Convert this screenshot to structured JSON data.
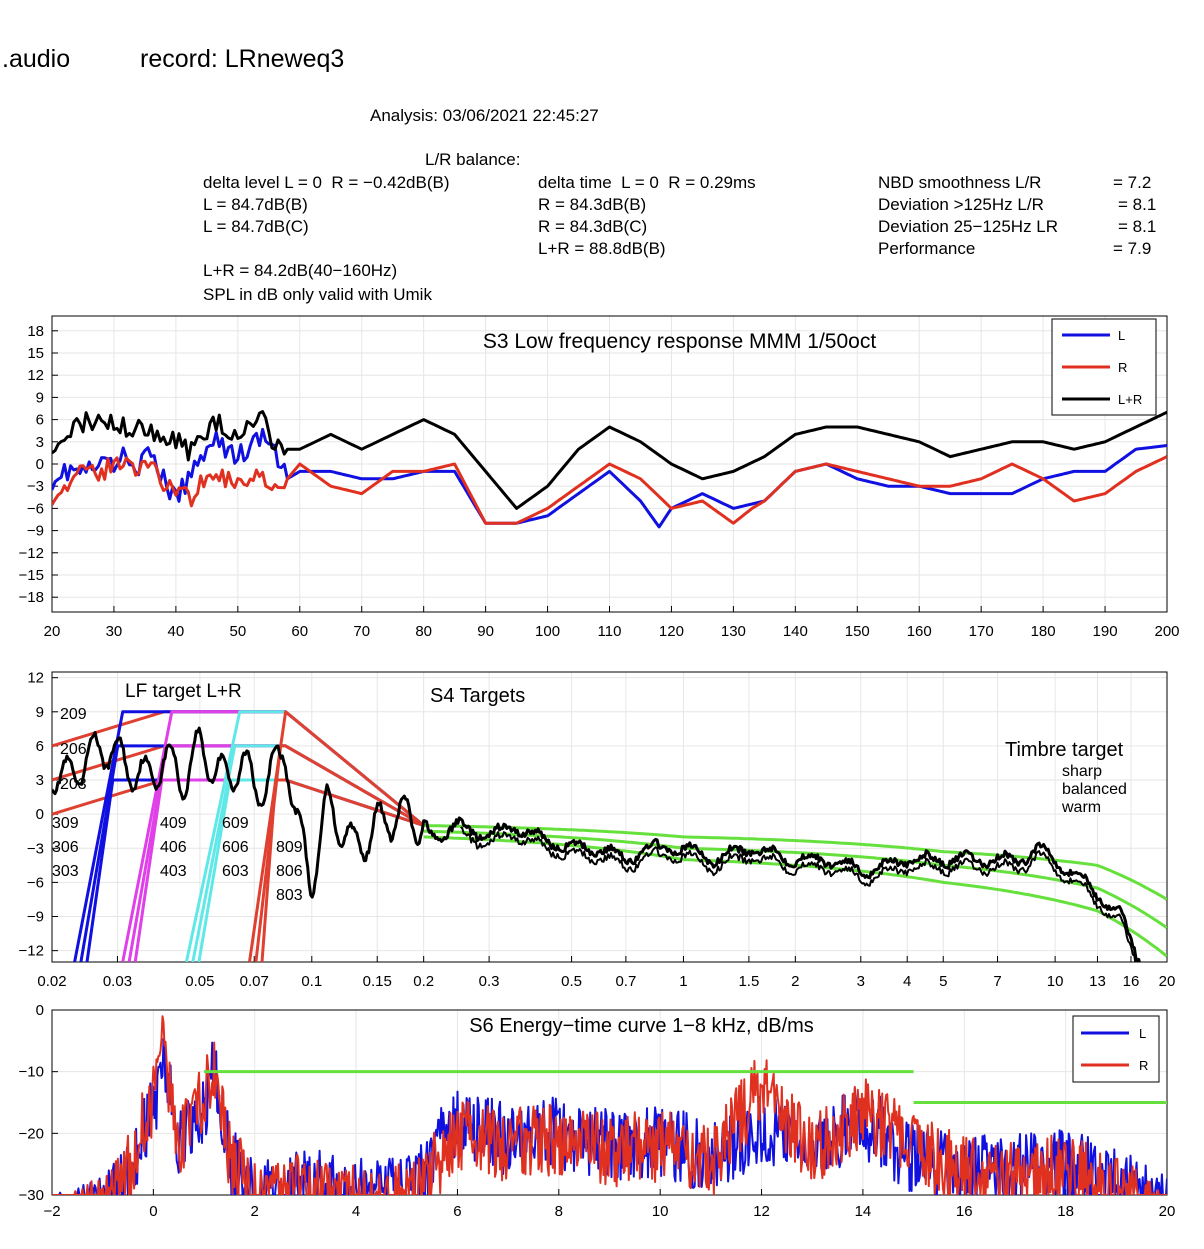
{
  "header": {
    "app": ".audio",
    "record": "record: LRneweq3",
    "analysis": "Analysis: 03/06/2021 22:45:27",
    "balance_title": "L/R balance:",
    "col1": [
      "delta level L = 0  R = −0.42dB(B)",
      "L = 84.7dB(B)",
      "L = 84.7dB(C)"
    ],
    "col2": [
      "delta time  L = 0  R = 0.29ms",
      "R = 84.3dB(B)",
      "R = 84.3dB(C)",
      "L+R = 88.8dB(B)"
    ],
    "col3_labels": [
      "NBD smoothness L/R",
      "Deviation >125Hz L/R",
      "Deviation 25−125Hz LR",
      "Performance"
    ],
    "col3_values": [
      "= 7.2",
      "= 8.1",
      "= 8.1",
      "= 7.9"
    ],
    "lr_level": "L+R = 84.2dB(40−160Hz)",
    "spl_note": "SPL in dB only valid with Umik"
  },
  "colors": {
    "L": "#1010e0",
    "R": "#e03020",
    "LR": "#000000",
    "target_green": "#66e03c",
    "magenta": "#e040e8",
    "cyan": "#60e8e8",
    "red_target": "#e04030"
  },
  "chart_data": [
    {
      "type": "line",
      "title": "S3  Low frequency response MMM 1/50oct",
      "xlabel": "",
      "ylabel": "",
      "xlim": [
        20,
        200
      ],
      "ylim": [
        -20,
        20
      ],
      "xticks": [
        20,
        30,
        40,
        50,
        60,
        70,
        80,
        90,
        100,
        110,
        120,
        130,
        140,
        150,
        160,
        170,
        180,
        190,
        200
      ],
      "yticks": [
        18,
        15,
        12,
        9,
        6,
        3,
        0,
        -3,
        -6,
        -9,
        -12,
        -15,
        -18
      ],
      "legend": [
        "L",
        "R",
        "L+R"
      ],
      "legend_position": "top-right",
      "grid": true,
      "series": [
        {
          "name": "L",
          "x": [
            20,
            22,
            24,
            26,
            28,
            30,
            32,
            34,
            36,
            38,
            40,
            42,
            44,
            46,
            48,
            50,
            52,
            54,
            56,
            58,
            60,
            65,
            70,
            75,
            80,
            85,
            90,
            95,
            100,
            105,
            110,
            115,
            118,
            120,
            125,
            130,
            135,
            140,
            145,
            150,
            155,
            160,
            165,
            170,
            175,
            180,
            185,
            190,
            195,
            200
          ],
          "y": [
            -2,
            -1,
            -1,
            -1,
            0,
            0,
            1,
            0,
            1,
            -2,
            -5,
            -2,
            1,
            4,
            2,
            1,
            2,
            4,
            1,
            -2,
            -1,
            -1,
            -2,
            -2,
            -1,
            -1,
            -8,
            -8,
            -7,
            -4,
            -1,
            -5,
            -8.5,
            -6,
            -4,
            -6,
            -5,
            -1,
            0,
            -2,
            -3,
            -3,
            -4,
            -4,
            -4,
            -2,
            -1,
            -1,
            2,
            2.5
          ]
        },
        {
          "name": "R",
          "x": [
            20,
            22,
            24,
            26,
            28,
            30,
            32,
            34,
            36,
            38,
            40,
            42,
            44,
            46,
            48,
            50,
            52,
            54,
            56,
            58,
            60,
            65,
            70,
            75,
            80,
            85,
            90,
            95,
            100,
            105,
            110,
            115,
            120,
            125,
            130,
            133,
            135,
            140,
            145,
            150,
            155,
            160,
            165,
            170,
            175,
            180,
            185,
            190,
            195,
            200
          ],
          "y": [
            -4,
            -3,
            -2,
            -1,
            -1,
            0,
            0,
            -1,
            1,
            -3,
            -3,
            -5,
            -2,
            -3,
            -2,
            -3,
            -1,
            -2,
            -2,
            -2,
            0,
            -3,
            -4,
            -1,
            -1,
            0,
            -8,
            -8,
            -6,
            -3,
            0,
            -2,
            -6,
            -5,
            -8,
            -6,
            -5,
            -1,
            0,
            -1,
            -2,
            -3,
            -3,
            -2,
            0,
            -2,
            -5,
            -4,
            -1,
            1
          ]
        },
        {
          "name": "L+R",
          "x": [
            20,
            22,
            24,
            26,
            28,
            30,
            32,
            34,
            36,
            38,
            40,
            42,
            44,
            46,
            48,
            50,
            52,
            54,
            56,
            58,
            60,
            65,
            70,
            75,
            80,
            85,
            90,
            95,
            100,
            105,
            110,
            115,
            120,
            125,
            130,
            135,
            140,
            145,
            150,
            155,
            160,
            165,
            170,
            175,
            180,
            185,
            190,
            195,
            200
          ],
          "y": [
            3,
            4,
            5,
            6,
            6,
            6,
            5,
            5,
            4,
            3,
            3,
            2,
            3,
            6,
            5,
            4,
            5,
            6,
            2,
            2,
            2,
            4,
            2,
            4,
            6,
            4,
            -1,
            -6,
            -3,
            2,
            5,
            3,
            0,
            -2,
            -1,
            1,
            4,
            5,
            5,
            4,
            3,
            1,
            2,
            3,
            3,
            2,
            3,
            5,
            7
          ]
        }
      ]
    },
    {
      "type": "line",
      "title": "S4 Targets",
      "xlabel": "",
      "ylabel": "",
      "xscale": "log",
      "xlim": [
        0.02,
        20
      ],
      "ylim": [
        -13,
        12.5
      ],
      "xticks": [
        0.02,
        0.03,
        0.05,
        0.07,
        0.1,
        0.15,
        0.2,
        0.3,
        0.5,
        0.7,
        1,
        1.5,
        2,
        3,
        4,
        5,
        7,
        10,
        13,
        16,
        20
      ],
      "xtick_labels": [
        "0.02",
        "0.03",
        "0.05",
        "0.07",
        "0.1",
        "0.15",
        "0.2",
        "0.3",
        "0.5",
        "0.7",
        "1",
        "1.5",
        "2",
        "3",
        "4",
        "5",
        "7",
        "10",
        "13",
        "16",
        "20"
      ],
      "yticks": [
        12,
        9,
        6,
        3,
        0,
        -3,
        -6,
        -9,
        -12
      ],
      "grid": true,
      "annotations": {
        "lf_target": "LF target L+R",
        "timbre_target": "Timbre target",
        "timbre_labels": [
          "sharp",
          "balanced",
          "warm"
        ],
        "labels_209": [
          "209",
          "206",
          "203"
        ],
        "labels_309": [
          "309",
          "306",
          "303"
        ],
        "labels_409": [
          "409",
          "406",
          "403"
        ],
        "labels_609": [
          "609",
          "606",
          "603"
        ],
        "labels_809": [
          "809",
          "806",
          "803"
        ]
      },
      "targets_lf": [
        {
          "level": 9,
          "x": [
            0.02,
            0.04,
            0.085,
            0.2
          ],
          "y": [
            6,
            9,
            9,
            -1
          ]
        },
        {
          "level": 6,
          "x": [
            0.02,
            0.04,
            0.085,
            0.2
          ],
          "y": [
            3,
            6,
            6,
            -1
          ]
        },
        {
          "level": 3,
          "x": [
            0.02,
            0.04,
            0.085,
            0.2
          ],
          "y": [
            0,
            3,
            3,
            -1
          ]
        }
      ],
      "rolloffs": [
        {
          "name": "300",
          "x_bottom": 0.023,
          "x_top": 0.031
        },
        {
          "name": "400",
          "x_bottom": 0.031,
          "x_top": 0.042
        },
        {
          "name": "600",
          "x_bottom": 0.046,
          "x_top": 0.064
        },
        {
          "name": "800",
          "x_bottom": 0.068,
          "x_top": 0.085
        }
      ],
      "timbre_targets": [
        {
          "name": "sharp",
          "x": [
            0.2,
            1,
            5,
            13,
            20
          ],
          "y": [
            -1,
            -2,
            -3.3,
            -4.5,
            -7.5
          ]
        },
        {
          "name": "balanced",
          "x": [
            0.2,
            1,
            5,
            13,
            20
          ],
          "y": [
            -1.5,
            -3,
            -4.5,
            -6.5,
            -10
          ]
        },
        {
          "name": "warm",
          "x": [
            0.2,
            1,
            5,
            13,
            20
          ],
          "y": [
            -2,
            -4,
            -6,
            -8.5,
            -12.5
          ]
        }
      ],
      "series": [
        {
          "name": "L+R",
          "x": [
            0.02,
            0.022,
            0.025,
            0.028,
            0.03,
            0.033,
            0.036,
            0.04,
            0.045,
            0.05,
            0.055,
            0.06,
            0.065,
            0.07,
            0.075,
            0.08,
            0.085,
            0.09,
            0.1,
            0.11,
            0.12,
            0.13,
            0.15,
            0.17,
            0.2,
            0.22,
            0.25,
            0.3,
            0.35,
            0.4,
            0.5,
            0.6,
            0.7,
            0.8,
            1,
            1.2,
            1.5,
            2,
            2.5,
            3,
            4,
            5,
            6,
            7,
            8,
            9,
            10,
            11,
            13,
            15,
            16,
            17
          ],
          "y": [
            4,
            3,
            5,
            6,
            5,
            4,
            3,
            5,
            3,
            6,
            4,
            3,
            5,
            2,
            3,
            4,
            6,
            0,
            -6,
            1,
            -1,
            -3,
            -1,
            0,
            -1,
            -2,
            -1,
            -2,
            -1,
            -2,
            -3,
            -3,
            -4,
            -3,
            -3,
            -4,
            -3,
            -4,
            -4,
            -5,
            -4,
            -4,
            -4,
            -4,
            -4,
            -3,
            -4,
            -5,
            -7,
            -9,
            -11,
            -13
          ]
        }
      ]
    },
    {
      "type": "line",
      "title": "S6  Energy−time curve 1−8 kHz, dB/ms",
      "xlabel": "",
      "ylabel": "",
      "xlim": [
        -2,
        20
      ],
      "ylim": [
        -30,
        0
      ],
      "xticks": [
        -2,
        0,
        2,
        4,
        6,
        8,
        10,
        12,
        14,
        16,
        18,
        20
      ],
      "yticks": [
        0,
        -10,
        -20,
        -30
      ],
      "legend": [
        "L",
        "R"
      ],
      "legend_position": "top-right",
      "grid": true,
      "reference_lines": [
        {
          "x": [
            1,
            15
          ],
          "y": [
            -10,
            -10
          ]
        },
        {
          "x": [
            15,
            20
          ],
          "y": [
            -15,
            -15
          ]
        }
      ],
      "series": [
        {
          "name": "L",
          "envelope_x": [
            -2,
            -1,
            -0.5,
            0,
            0.2,
            0.5,
            1,
            1.2,
            1.5,
            2,
            3,
            4,
            5,
            6,
            7,
            8,
            9,
            10,
            11,
            12,
            13,
            14,
            15,
            16,
            17,
            18,
            19,
            20
          ],
          "envelope_y": [
            -30,
            -27,
            -22,
            -10,
            -2,
            -15,
            -10,
            -4,
            -18,
            -25,
            -22,
            -24,
            -24,
            -12,
            -15,
            -14,
            -16,
            -15,
            -18,
            -13,
            -16,
            -12,
            -18,
            -20,
            -20,
            -19,
            -22,
            -27
          ]
        },
        {
          "name": "R",
          "envelope_x": [
            -2,
            -1,
            -0.5,
            0,
            0.2,
            0.5,
            1,
            1.2,
            1.5,
            2,
            3,
            4,
            5,
            6,
            7,
            8,
            9,
            10,
            11,
            12,
            13,
            14,
            15,
            16,
            17,
            18,
            19,
            20
          ],
          "envelope_y": [
            -30,
            -27,
            -20,
            -8,
            0,
            -15,
            -8,
            -4,
            -18,
            -24,
            -23,
            -25,
            -25,
            -14,
            -16,
            -15,
            -17,
            -16,
            -19,
            -6,
            -17,
            -10,
            -17,
            -20,
            -21,
            -20,
            -23,
            -27
          ]
        }
      ]
    }
  ]
}
